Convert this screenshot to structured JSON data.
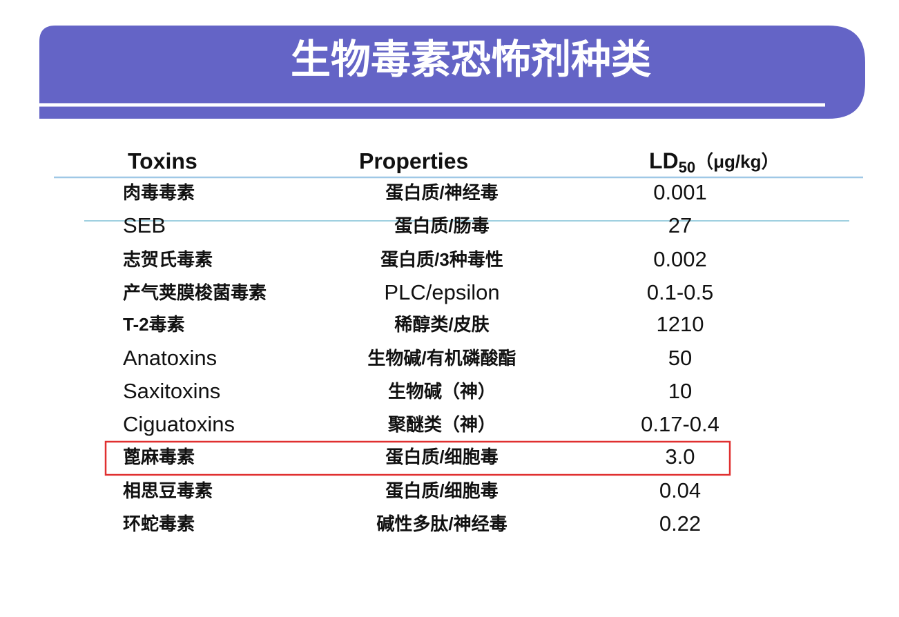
{
  "title": "生物毒素恐怖剂种类",
  "table": {
    "header": {
      "toxins": "Toxins",
      "properties": "Properties",
      "ld_main": "LD",
      "ld_sub": "50",
      "ld_unit": "（μg/kg）"
    },
    "rows": [
      [
        "肉毒毒素",
        "蛋白质/神经毒",
        "0.001"
      ],
      [
        "SEB",
        "蛋白质/肠毒",
        "27"
      ],
      [
        "志贺氏毒素",
        "蛋白质/3种毒性",
        "0.002"
      ],
      [
        "产气荚膜梭菌毒素",
        "PLC/epsilon",
        "0.1-0.5"
      ],
      [
        "T-2毒素",
        "稀醇类/皮肤",
        "1210"
      ],
      [
        "Anatoxins",
        "生物碱/有机磷酸酯",
        "50"
      ],
      [
        "Saxitoxins",
        "生物碱（神）",
        "10"
      ],
      [
        "Ciguatoxins",
        "聚醚类（神）",
        "0.17-0.4"
      ],
      [
        "蓖麻毒素",
        "蛋白质/细胞毒",
        "3.0"
      ],
      [
        "相思豆毒素",
        "蛋白质/细胞毒",
        "0.04"
      ],
      [
        "环蛇毒素",
        "碱性多肽/神经毒",
        "0.22"
      ]
    ]
  }
}
